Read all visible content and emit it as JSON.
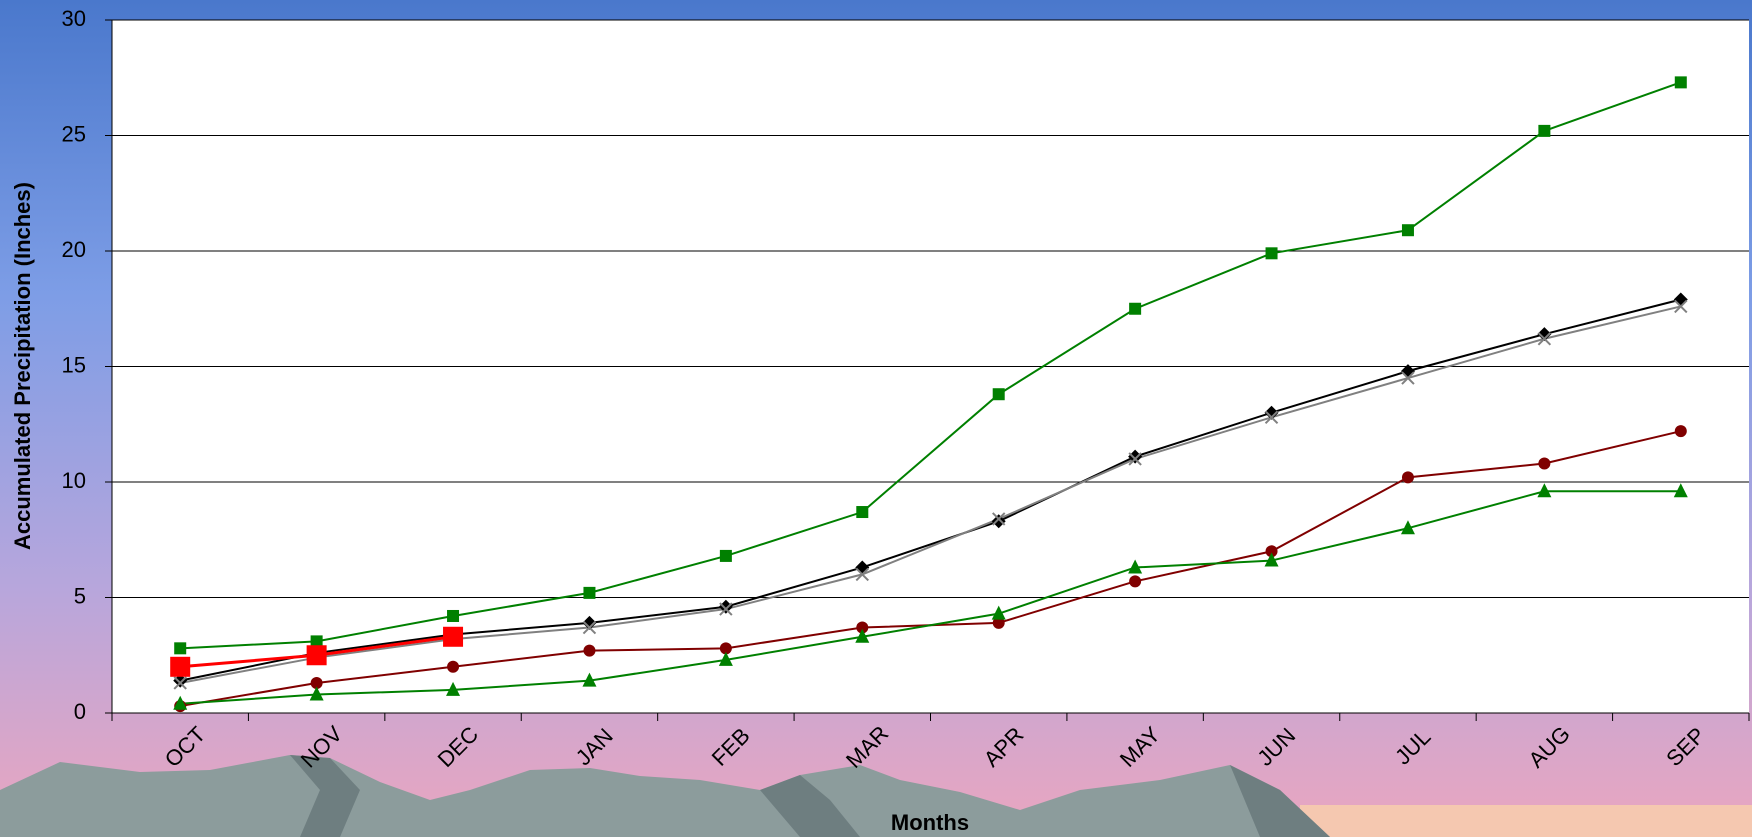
{
  "chart_data": {
    "type": "line",
    "y_label": "Accumulated Precipitation (Inches)",
    "x_label": "Months",
    "categories": [
      "OCT",
      "NOV",
      "DEC",
      "JAN",
      "FEB",
      "MAR",
      "APR",
      "MAY",
      "JUN",
      "JUL",
      "AUG",
      "SEP"
    ],
    "series": [
      {
        "color": "#008000",
        "marker": "square",
        "values": [
          2.8,
          3.1,
          4.2,
          5.2,
          6.8,
          8.7,
          13.8,
          17.5,
          19.9,
          20.9,
          25.2,
          27.3
        ]
      },
      {
        "color": "#000000",
        "marker": "diamond",
        "values": [
          1.4,
          2.6,
          3.4,
          3.9,
          4.6,
          6.3,
          8.3,
          11.1,
          13.0,
          14.8,
          16.4,
          17.9
        ]
      },
      {
        "color": "#808080",
        "marker": "x",
        "values": [
          1.3,
          2.4,
          3.2,
          3.7,
          4.5,
          6.0,
          8.4,
          11.0,
          12.8,
          14.5,
          16.2,
          17.6
        ]
      },
      {
        "color": "#800000",
        "marker": "circle",
        "values": [
          0.3,
          1.3,
          2.0,
          2.7,
          2.8,
          3.7,
          3.9,
          5.7,
          7.0,
          10.2,
          10.8,
          12.2
        ]
      },
      {
        "color": "#008000",
        "marker": "triangle",
        "values": [
          0.4,
          0.8,
          1.0,
          1.4,
          2.3,
          3.3,
          4.3,
          6.3,
          6.6,
          8.0,
          9.6,
          9.6
        ]
      },
      {
        "color": "#ff0000",
        "marker": "big-square",
        "values": [
          2.0,
          2.5,
          3.3,
          null,
          null,
          null,
          null,
          null,
          null,
          null,
          null,
          null
        ]
      }
    ],
    "ylim": [
      0,
      30
    ],
    "yticks": [
      0,
      5,
      10,
      15,
      20,
      25,
      30
    ],
    "grid": true
  }
}
